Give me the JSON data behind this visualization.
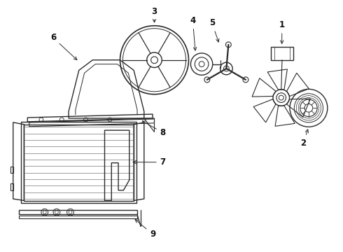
{
  "background_color": "#ffffff",
  "line_color": "#2a2a2a",
  "label_color": "#111111",
  "figsize": [
    4.9,
    3.6
  ],
  "dpi": 100
}
